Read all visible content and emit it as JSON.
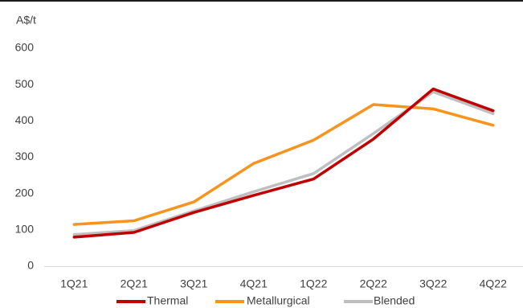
{
  "chart_data": {
    "type": "line",
    "title": "",
    "xlabel": "",
    "ylabel": "A$/t",
    "categories": [
      "1Q21",
      "2Q21",
      "3Q21",
      "4Q21",
      "1Q22",
      "2Q22",
      "3Q22",
      "4Q22"
    ],
    "ylim": [
      0,
      600
    ],
    "yticks": [
      0,
      100,
      200,
      300,
      400,
      500,
      600
    ],
    "grid": false,
    "legend_position": "bottom",
    "series": [
      {
        "name": "Thermal",
        "color": "#C00000",
        "values": [
          80,
          93,
          148,
          195,
          240,
          350,
          488,
          428
        ]
      },
      {
        "name": "Metallurgical",
        "color": "#F7941D",
        "values": [
          115,
          125,
          177,
          283,
          347,
          445,
          433,
          388
        ]
      },
      {
        "name": "Blended",
        "color": "#BFBFBF",
        "values": [
          87,
          98,
          152,
          205,
          255,
          365,
          480,
          420
        ]
      }
    ]
  }
}
